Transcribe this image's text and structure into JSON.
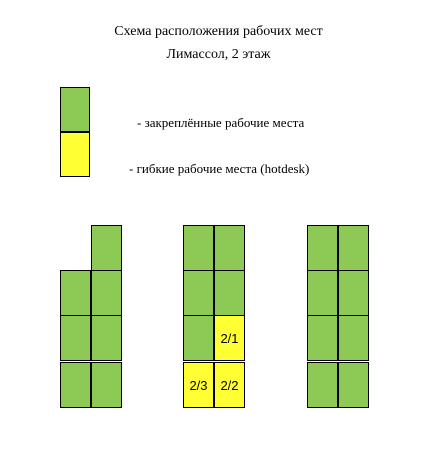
{
  "header": {
    "title": "Схема расположения рабочих мест",
    "subtitle": "Лимассол, 2 этаж"
  },
  "legend": {
    "fixed": {
      "label": "- закреплённые рабочие места",
      "color": "#8cc955"
    },
    "flexible": {
      "label": "- гибкие рабочие места (hotdesk)",
      "color": "#ffff33"
    }
  },
  "desks": {
    "flex_2_1": "2/1",
    "flex_2_2": "2/2",
    "flex_2_3": "2/3"
  }
}
